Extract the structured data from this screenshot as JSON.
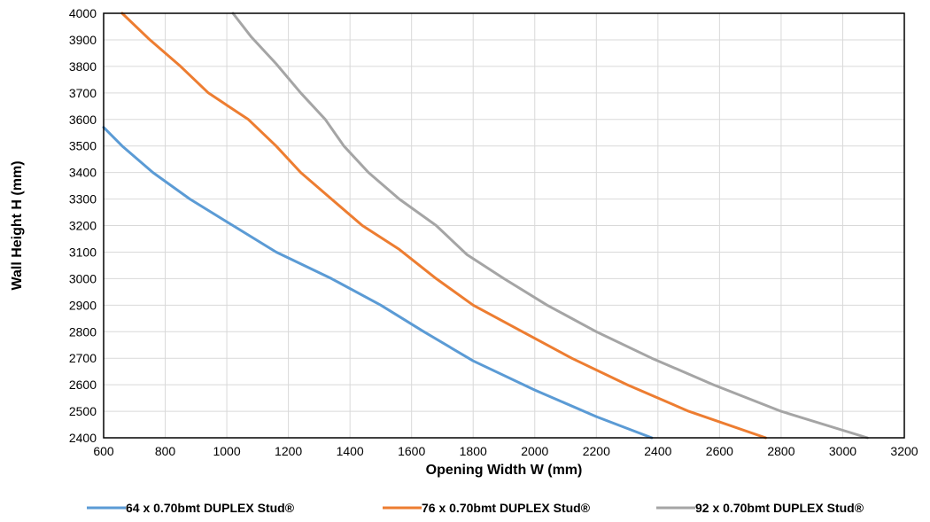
{
  "chart_data": {
    "type": "line",
    "title": "",
    "xlabel": "Opening Width W (mm)",
    "ylabel": "Wall Height H (mm)",
    "xlim": [
      600,
      3200
    ],
    "ylim": [
      2400,
      4000
    ],
    "xticks": [
      "600",
      "800",
      "1000",
      "1200",
      "1400",
      "1600",
      "1800",
      "2000",
      "2200",
      "2400",
      "2600",
      "2800",
      "3000",
      "3200"
    ],
    "yticks": [
      "2400",
      "2500",
      "2600",
      "2700",
      "2800",
      "2900",
      "3000",
      "3100",
      "3200",
      "3300",
      "3400",
      "3500",
      "3600",
      "3700",
      "3800",
      "3900",
      "4000"
    ],
    "grid": true,
    "legend_position": "bottom",
    "series": [
      {
        "name": "64 x 0.70bmt DUPLEX Stud®",
        "color": "#5b9bd5",
        "x": [
          600,
          660,
          760,
          880,
          1020,
          1160,
          1340,
          1500,
          1640,
          1800,
          2000,
          2200,
          2380
        ],
        "y": [
          3570,
          3500,
          3400,
          3300,
          3200,
          3100,
          3000,
          2900,
          2800,
          2690,
          2580,
          2480,
          2400
        ]
      },
      {
        "name": "76 x 0.70bmt DUPLEX Stud®",
        "color": "#ed7d31",
        "x": [
          660,
          750,
          850,
          940,
          1070,
          1160,
          1240,
          1340,
          1440,
          1560,
          1680,
          1800,
          1960,
          2120,
          2300,
          2500,
          2750
        ],
        "y": [
          4000,
          3900,
          3800,
          3700,
          3600,
          3500,
          3400,
          3300,
          3200,
          3110,
          3000,
          2900,
          2800,
          2700,
          2600,
          2500,
          2400
        ]
      },
      {
        "name": "92 x 0.70bmt DUPLEX Stud®",
        "color": "#a5a5a5",
        "x": [
          1020,
          1080,
          1160,
          1240,
          1320,
          1380,
          1460,
          1560,
          1680,
          1780,
          1900,
          2040,
          2200,
          2380,
          2580,
          2800,
          3080
        ],
        "y": [
          4000,
          3910,
          3810,
          3700,
          3600,
          3500,
          3400,
          3300,
          3200,
          3090,
          3000,
          2900,
          2800,
          2700,
          2600,
          2500,
          2400
        ]
      }
    ]
  }
}
